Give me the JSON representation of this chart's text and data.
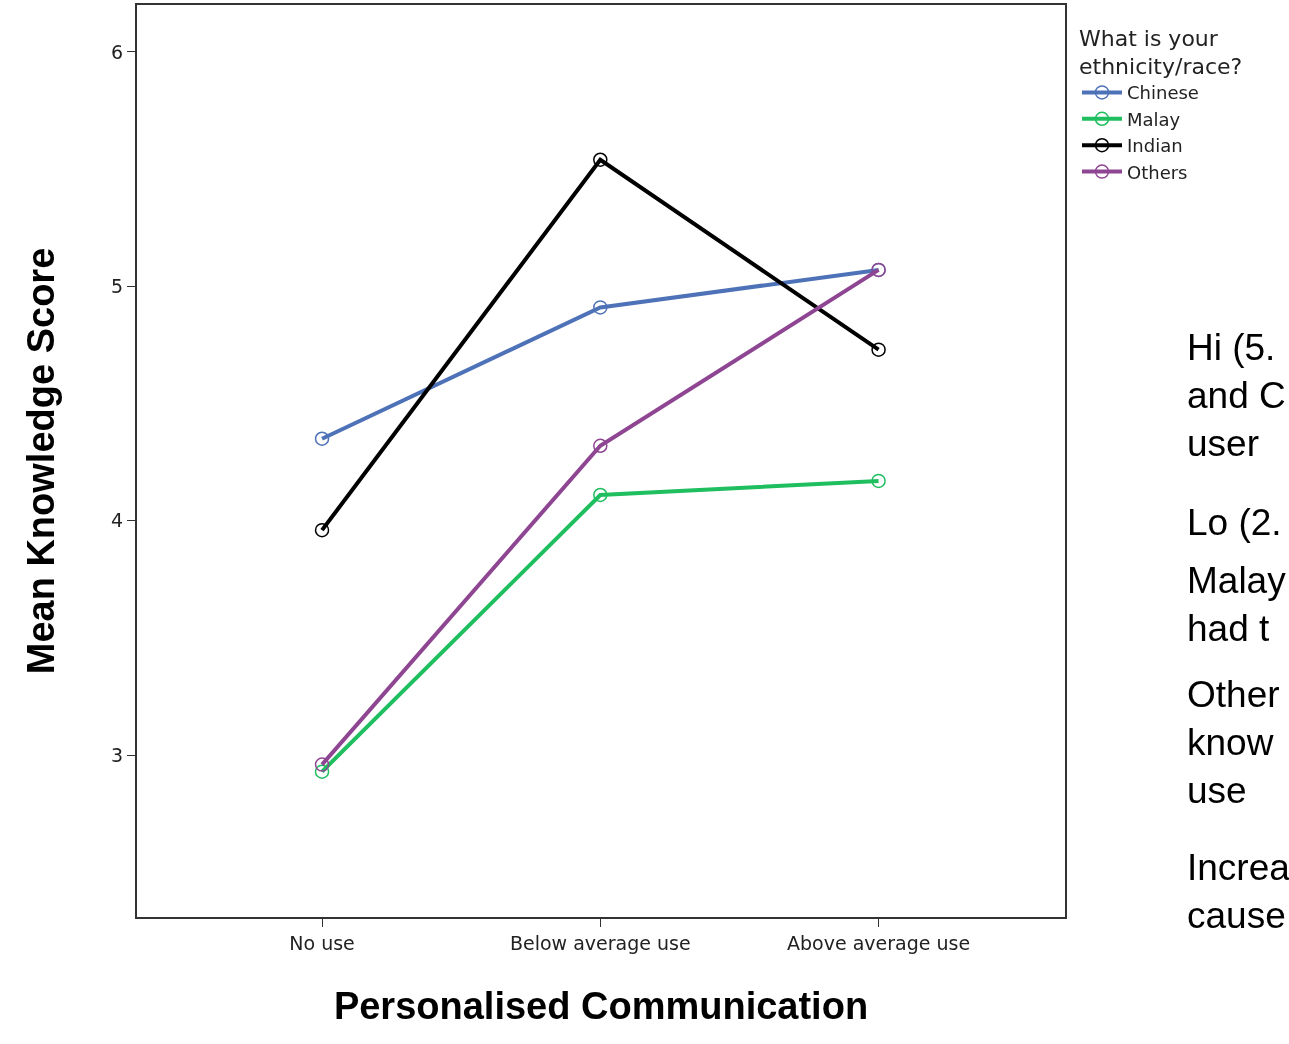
{
  "chart_data": {
    "type": "line",
    "xlabel": "Personalised Communication",
    "ylabel": "Mean Knowledge Score",
    "legend_title": "What is your\nethnicity/race?",
    "categories": [
      "No use",
      "Below average use",
      "Above average use"
    ],
    "series": [
      {
        "name": "Chinese",
        "color": "#4e72b8",
        "values": [
          4.35,
          4.91,
          5.07
        ]
      },
      {
        "name": "Malay",
        "color": "#1fbe5f",
        "values": [
          2.93,
          4.11,
          4.17
        ]
      },
      {
        "name": "Indian",
        "color": "#000000",
        "values": [
          3.96,
          5.54,
          4.73
        ]
      },
      {
        "name": "Others",
        "color": "#8e4592",
        "values": [
          2.96,
          4.32,
          5.07
        ]
      }
    ],
    "ylim": [
      2.31,
      6.2
    ],
    "yticks": [
      3,
      4,
      5,
      6
    ],
    "legend": "top right",
    "marker": "circle",
    "line_style": "solid",
    "annotations": [
      "Hi (5.\nand C\nuser",
      "Lo (2.",
      "Malay\nhad t",
      "Other\nknow\nuse",
      "Increa\ncause"
    ]
  }
}
